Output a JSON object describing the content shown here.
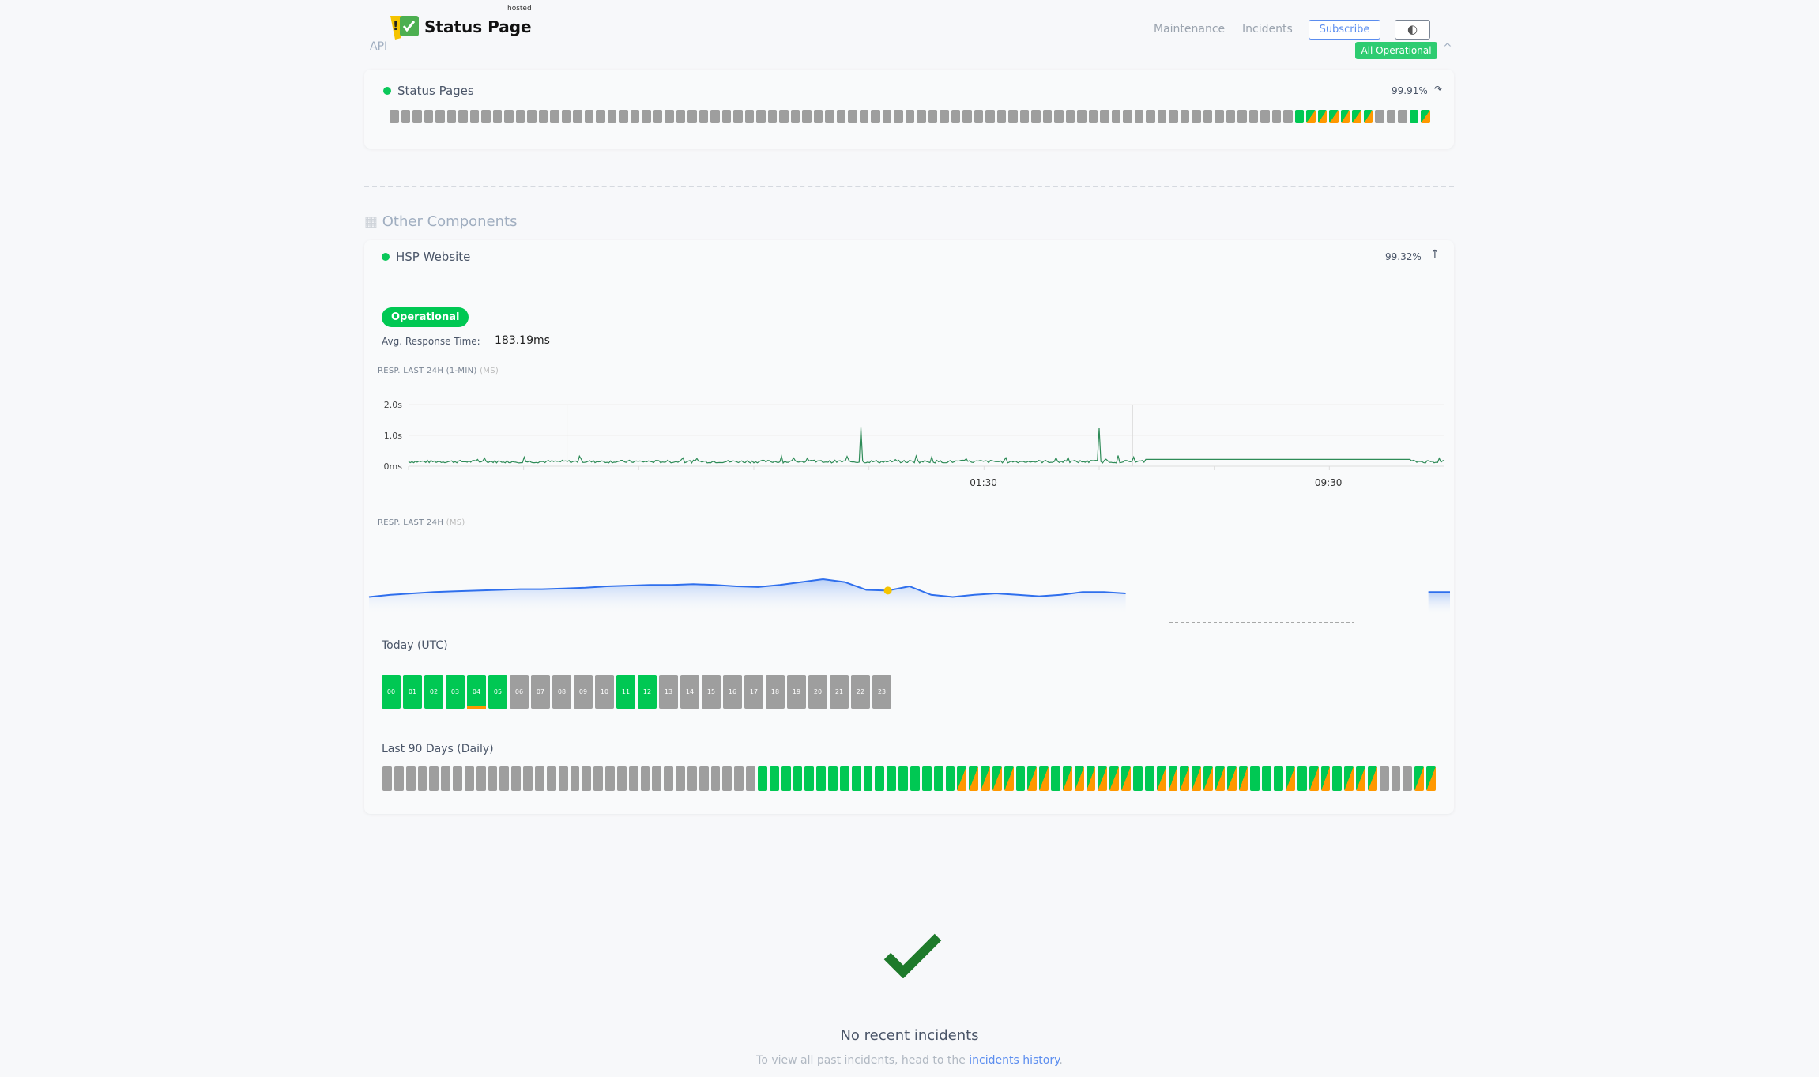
{
  "header": {
    "brand": "Status Page",
    "brand_sup": "hosted",
    "api_label": "API",
    "nav": [
      "Maintenance",
      "Incidents"
    ],
    "subscribe_label": "Subscribe",
    "theme_icon": "contrast-icon",
    "overall_status": "All Operational"
  },
  "colors": {
    "operational": "#00c853",
    "degraded": "#ff9800",
    "no_data": "#9e9e9e",
    "link": "#5b8def"
  },
  "api_group": {
    "components": [
      {
        "name": "Status Pages",
        "uptime": "99.91%",
        "daily": "gggggggggggggggggggggggggggggggggggggggggggggggggggggggggggggggggggggggggggggggGHHHHHHgggGH"
      }
    ]
  },
  "other_components": {
    "title": "Other Components",
    "component": {
      "name": "HSP Website",
      "uptime": "99.32%",
      "status": "Operational",
      "avg_label": "Avg. Response Time:",
      "avg_value": "183.19ms",
      "resp_1min_label": "RESP. LAST 24H (1-MIN)",
      "resp_1min_unit": "(MS)",
      "resp_label": "RESP. LAST 24H",
      "resp_unit": "(MS)",
      "today_label": "Today (UTC)",
      "hours": [
        {
          "h": "00",
          "s": "G"
        },
        {
          "h": "01",
          "s": "G"
        },
        {
          "h": "02",
          "s": "G"
        },
        {
          "h": "03",
          "s": "G"
        },
        {
          "h": "04",
          "s": "G",
          "partial": "degraded"
        },
        {
          "h": "05",
          "s": "G"
        },
        {
          "h": "06",
          "s": "g"
        },
        {
          "h": "07",
          "s": "g"
        },
        {
          "h": "08",
          "s": "g"
        },
        {
          "h": "09",
          "s": "g"
        },
        {
          "h": "10",
          "s": "g"
        },
        {
          "h": "11",
          "s": "G"
        },
        {
          "h": "12",
          "s": "G"
        },
        {
          "h": "13",
          "s": "g"
        },
        {
          "h": "14",
          "s": "g"
        },
        {
          "h": "15",
          "s": "g"
        },
        {
          "h": "16",
          "s": "g"
        },
        {
          "h": "17",
          "s": "g"
        },
        {
          "h": "18",
          "s": "g"
        },
        {
          "h": "19",
          "s": "g"
        },
        {
          "h": "20",
          "s": "g"
        },
        {
          "h": "21",
          "s": "g"
        },
        {
          "h": "22",
          "s": "g"
        },
        {
          "h": "23",
          "s": "g"
        }
      ],
      "days_label": "Last 90 Days (Daily)",
      "daily": "ggggggggggggggggggggggggggggggggGGGGGGGGGGGGGGGGGHHHHHGHHGHHHHHHGGHHHHHHHHGGGHGHHGHHHgggHH"
    }
  },
  "chart_data": [
    {
      "type": "line",
      "title": "RESP. LAST 24H (1-MIN) (MS)",
      "yticks": [
        "0ms",
        "1.0s",
        "2.0s"
      ],
      "ylim": [
        0,
        2000
      ],
      "xticks": [
        "01:30",
        "09:30"
      ],
      "baseline_ms": 150,
      "flat_ms": 220,
      "spikes": [
        {
          "x": 0.436,
          "ms": 1250
        },
        {
          "x": 0.666,
          "ms": 1230
        },
        {
          "x": 0.36,
          "ms": 320
        },
        {
          "x": 0.49,
          "ms": 330
        },
        {
          "x": 0.505,
          "ms": 300
        }
      ],
      "grid": true
    },
    {
      "type": "area",
      "title": "RESP. LAST 24H (MS)",
      "values": [
        175,
        178,
        180,
        182,
        183,
        184,
        185,
        186,
        186,
        187,
        188,
        190,
        191,
        192,
        192,
        193,
        192,
        190,
        189,
        192,
        196,
        200,
        196,
        185,
        184,
        190,
        178,
        175,
        178,
        180,
        178,
        176,
        178,
        182,
        182,
        180,
        null,
        null,
        null,
        null,
        null,
        null,
        null,
        null,
        null,
        null,
        null,
        null,
        null,
        182,
        182
      ],
      "highlight_index": 24
    }
  ],
  "incidents": {
    "title": "No recent incidents",
    "text": "To view all past incidents, head to the",
    "link": "incidents history",
    "suffix": "."
  }
}
